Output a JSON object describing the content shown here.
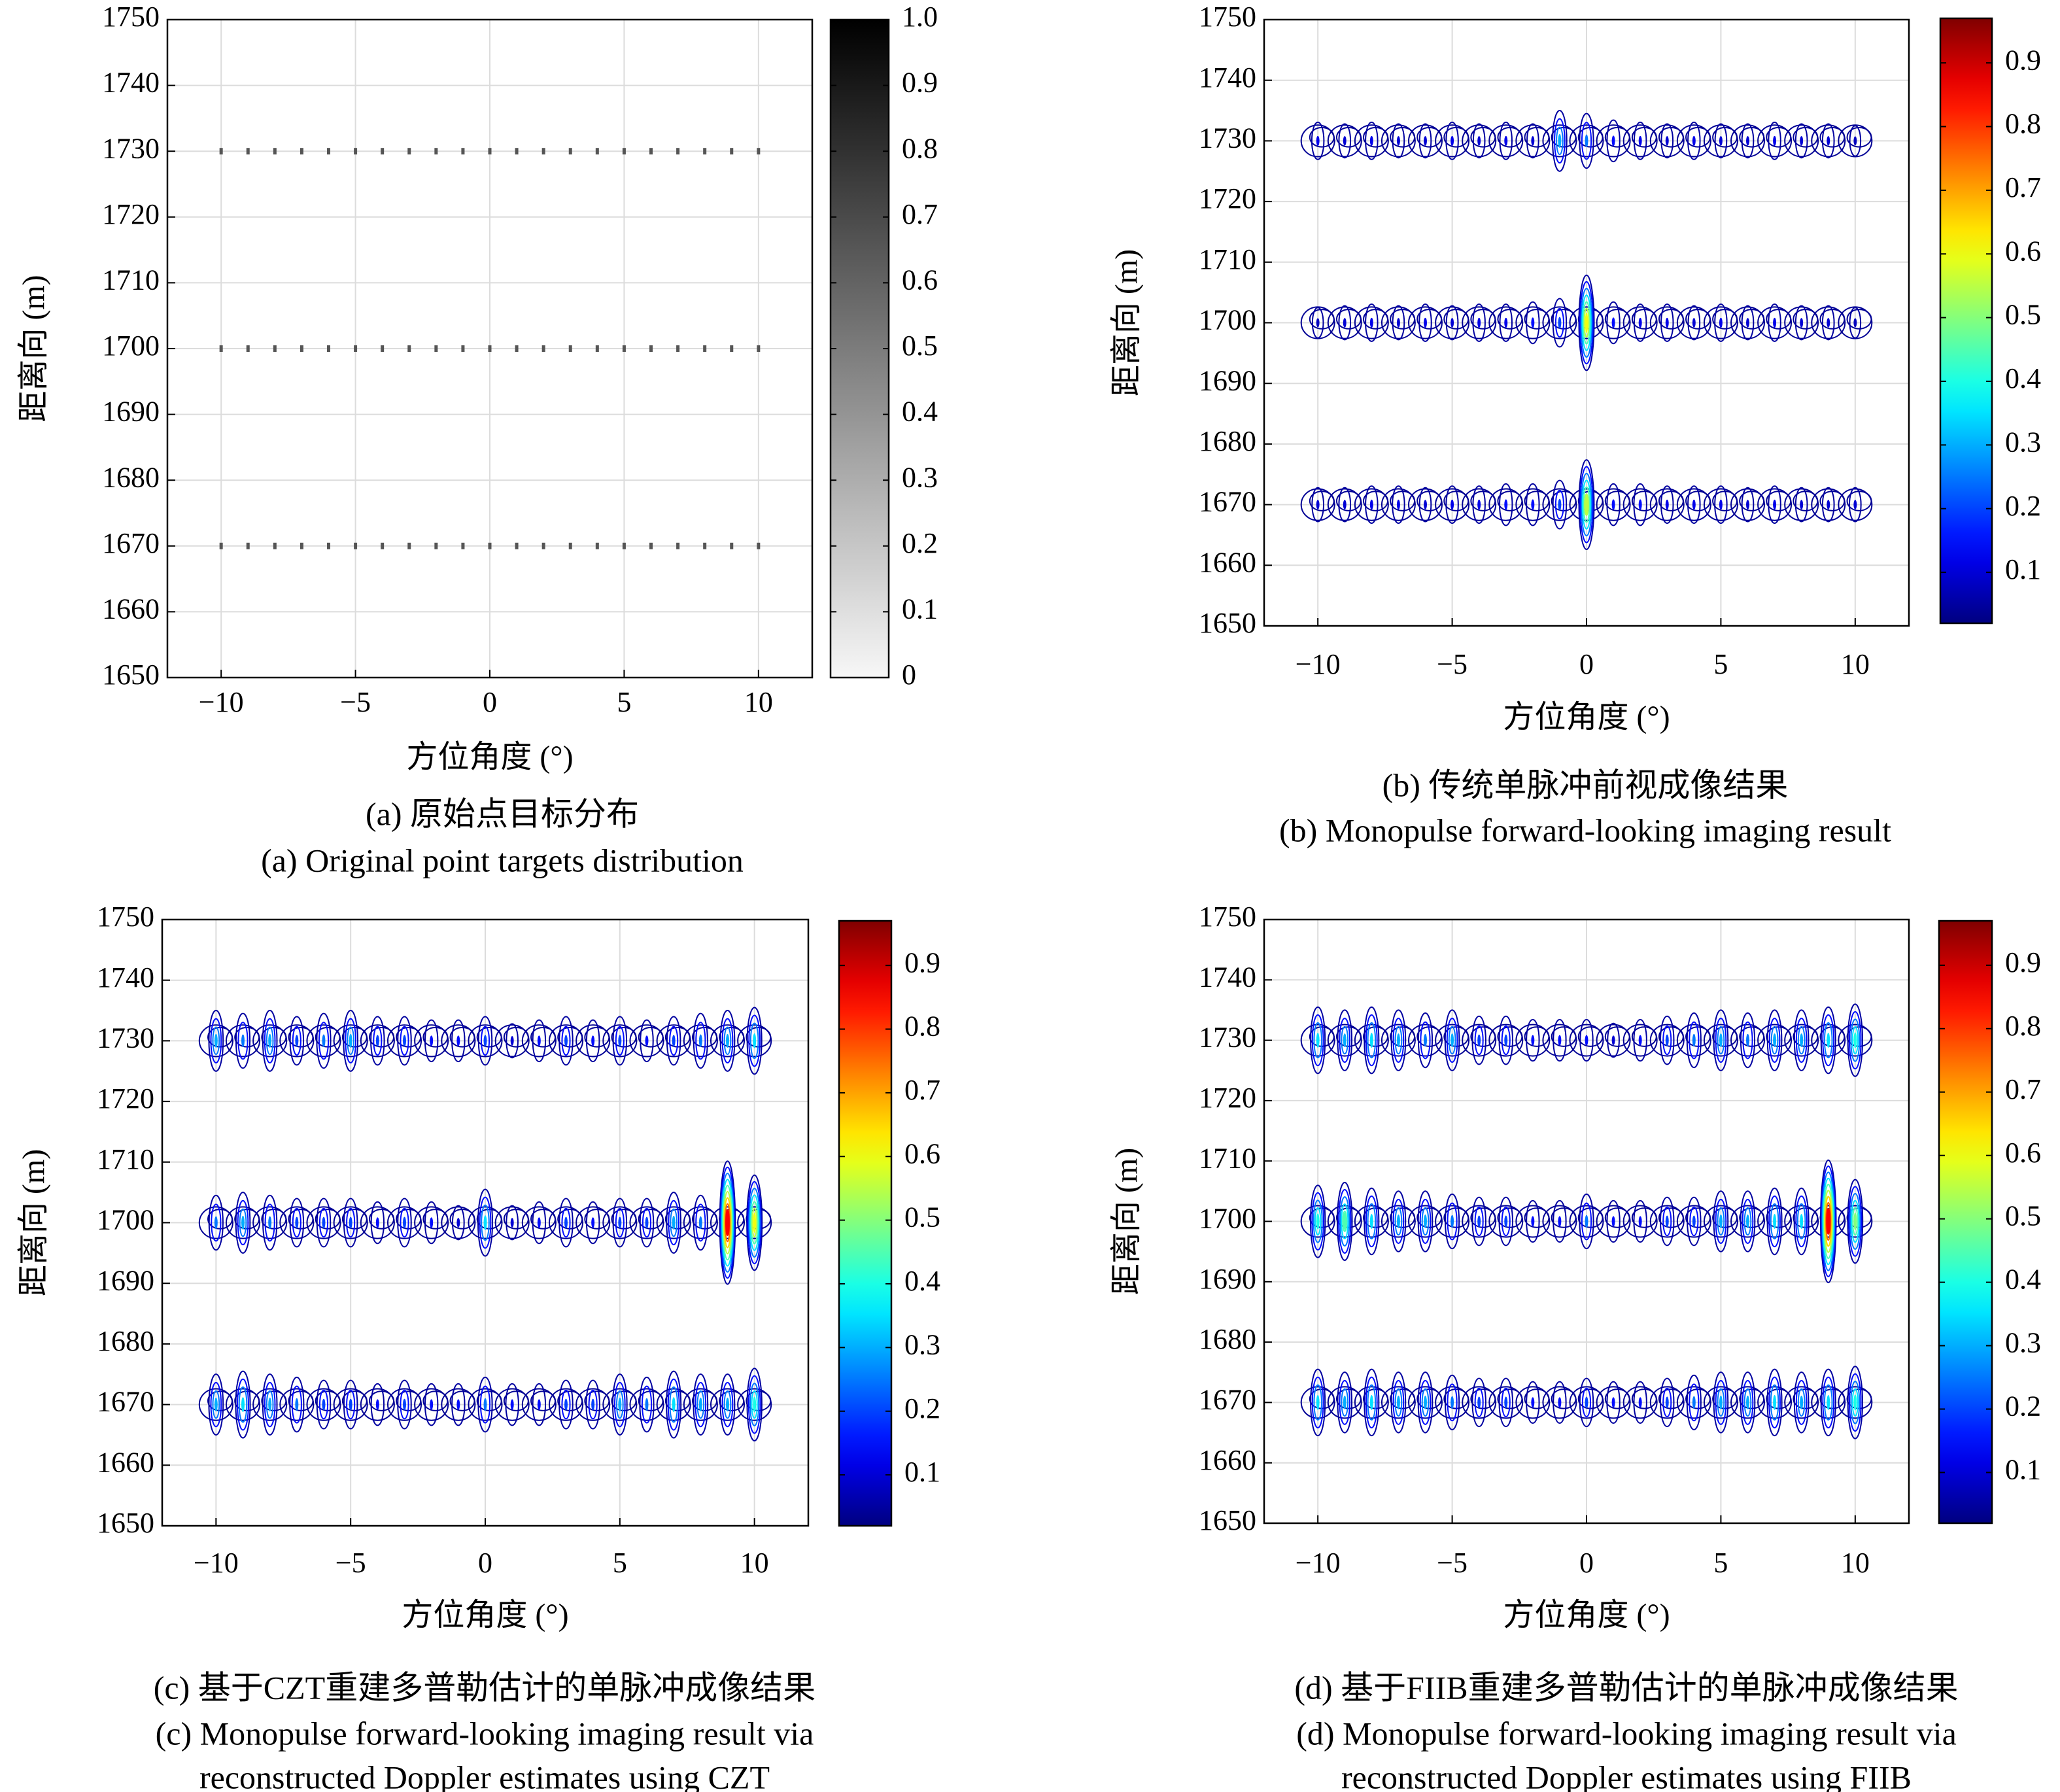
{
  "chart_data": [
    {
      "type": "scatter",
      "xlabel": "方位角度 (°)",
      "ylabel": "距离向 (m)",
      "caption": [
        "(a) 原始点目标分布",
        "(a) Original point targets distribution"
      ],
      "xlim": [
        -12,
        12
      ],
      "ylim": [
        1650,
        1750
      ],
      "xticks": [
        {
          "value": -10,
          "label": "−10"
        },
        {
          "value": -5,
          "label": "−5"
        },
        0,
        5,
        10
      ],
      "yticks": [
        1650,
        1660,
        1670,
        1680,
        1690,
        1700,
        1710,
        1720,
        1730,
        1740,
        1750
      ],
      "grid": true,
      "color": "#555555",
      "x": [
        -10,
        -9,
        -8,
        -7,
        -6,
        -5,
        -4,
        -3,
        -2,
        -1,
        0,
        1,
        2,
        3,
        4,
        5,
        6,
        7,
        8,
        9,
        10
      ],
      "series": [
        {
          "values": [
            1730,
            1730,
            1730,
            1730,
            1730,
            1730,
            1730,
            1730,
            1730,
            1730,
            1730,
            1730,
            1730,
            1730,
            1730,
            1730,
            1730,
            1730,
            1730,
            1730,
            1730
          ]
        },
        {
          "values": [
            1700,
            1700,
            1700,
            1700,
            1700,
            1700,
            1700,
            1700,
            1700,
            1700,
            1700,
            1700,
            1700,
            1700,
            1700,
            1700,
            1700,
            1700,
            1700,
            1700,
            1700
          ]
        },
        {
          "values": [
            1670,
            1670,
            1670,
            1670,
            1670,
            1670,
            1670,
            1670,
            1670,
            1670,
            1670,
            1670,
            1670,
            1670,
            1670,
            1670,
            1670,
            1670,
            1670,
            1670,
            1670
          ]
        }
      ],
      "colorbar": {
        "colormap": "gray",
        "lim": [
          0,
          1
        ],
        "ticks": [
          0,
          0.1,
          0.2,
          0.3,
          0.4,
          0.5,
          0.6,
          0.7,
          0.8,
          0.9,
          {
            "value": 1,
            "label": "1.0"
          }
        ]
      }
    },
    {
      "type": "contour",
      "xlabel": "方位角度 (°)",
      "ylabel": "距离向 (m)",
      "caption": [
        "(b) 传统单脉冲前视成像结果",
        "(b) Monopulse forward-looking imaging result"
      ],
      "xlim": [
        -12,
        12
      ],
      "ylim": [
        1650,
        1750
      ],
      "xticks": [
        {
          "value": -10,
          "label": "−10"
        },
        {
          "value": -5,
          "label": "−5"
        },
        0,
        5,
        10
      ],
      "yticks": [
        1650,
        1660,
        1670,
        1680,
        1690,
        1700,
        1710,
        1720,
        1730,
        1740,
        1750
      ],
      "grid": true,
      "x": [
        -10,
        -9,
        -8,
        -7,
        -6,
        -5,
        -4,
        -3,
        -2,
        -1,
        0,
        1,
        2,
        3,
        4,
        5,
        6,
        7,
        8,
        9,
        10
      ],
      "series": [
        {
          "y": 1730,
          "values": [
            0.12,
            0.1,
            0.12,
            0.1,
            0.1,
            0.12,
            0.1,
            0.12,
            0.1,
            0.3,
            0.25,
            0.15,
            0.12,
            0.1,
            0.12,
            0.1,
            0.1,
            0.12,
            0.1,
            0.1,
            0.08
          ]
        },
        {
          "y": 1700,
          "values": [
            0.08,
            0.1,
            0.12,
            0.1,
            0.12,
            0.1,
            0.12,
            0.12,
            0.15,
            0.2,
            0.6,
            0.15,
            0.12,
            0.12,
            0.1,
            0.12,
            0.1,
            0.12,
            0.1,
            0.1,
            0.08
          ]
        },
        {
          "y": 1670,
          "values": [
            0.1,
            0.1,
            0.12,
            0.12,
            0.1,
            0.12,
            0.12,
            0.15,
            0.15,
            0.2,
            0.55,
            0.15,
            0.15,
            0.12,
            0.12,
            0.12,
            0.1,
            0.12,
            0.1,
            0.1,
            0.1
          ]
        }
      ],
      "colorbar": {
        "colormap": "jet",
        "lim": [
          0.02,
          0.97
        ],
        "ticks": [
          0.1,
          0.2,
          0.3,
          0.4,
          0.5,
          0.6,
          0.7,
          0.8,
          0.9
        ]
      }
    },
    {
      "type": "contour",
      "xlabel": "方位角度 (°)",
      "ylabel": "距离向 (m)",
      "caption": [
        "(c) 基于CZT重建多普勒估计的单脉冲成像结果",
        "(c) Monopulse forward-looking imaging result via",
        "reconstructed Doppler estimates using CZT"
      ],
      "xlim": [
        -12,
        12
      ],
      "ylim": [
        1650,
        1750
      ],
      "xticks": [
        {
          "value": -10,
          "label": "−10"
        },
        {
          "value": -5,
          "label": "−5"
        },
        0,
        5,
        10
      ],
      "yticks": [
        1650,
        1660,
        1670,
        1680,
        1690,
        1700,
        1710,
        1720,
        1730,
        1740,
        1750
      ],
      "grid": true,
      "x": [
        -10,
        -9,
        -8,
        -7,
        -6,
        -5,
        -4,
        -3,
        -2,
        -1,
        0,
        1,
        2,
        3,
        4,
        5,
        6,
        7,
        8,
        9,
        10
      ],
      "series": [
        {
          "y": 1730,
          "values": [
            0.3,
            0.25,
            0.3,
            0.2,
            0.25,
            0.3,
            0.2,
            0.2,
            0.15,
            0.15,
            0.2,
            0.1,
            0.15,
            0.2,
            0.15,
            0.2,
            0.15,
            0.2,
            0.25,
            0.3,
            0.35
          ]
        },
        {
          "y": 1700,
          "values": [
            0.25,
            0.3,
            0.25,
            0.2,
            0.2,
            0.2,
            0.15,
            0.2,
            0.15,
            0.1,
            0.35,
            0.1,
            0.15,
            0.2,
            0.15,
            0.2,
            0.2,
            0.3,
            0.25,
            0.85,
            0.6
          ]
        },
        {
          "y": 1670,
          "values": [
            0.3,
            0.35,
            0.3,
            0.25,
            0.2,
            0.2,
            0.15,
            0.2,
            0.15,
            0.15,
            0.25,
            0.15,
            0.15,
            0.2,
            0.2,
            0.3,
            0.25,
            0.35,
            0.3,
            0.3,
            0.4
          ]
        }
      ],
      "colorbar": {
        "colormap": "jet",
        "lim": [
          0.02,
          0.97
        ],
        "ticks": [
          0.1,
          0.2,
          0.3,
          0.4,
          0.5,
          0.6,
          0.7,
          0.8,
          0.9
        ]
      }
    },
    {
      "type": "contour",
      "xlabel": "方位角度 (°)",
      "ylabel": "距离向 (m)",
      "caption": [
        "(d) 基于FIIB重建多普勒估计的单脉冲成像结果",
        "(d) Monopulse forward-looking imaging result via",
        "reconstructed Doppler estimates using FIIB"
      ],
      "xlim": [
        -12,
        12
      ],
      "ylim": [
        1650,
        1750
      ],
      "xticks": [
        {
          "value": -10,
          "label": "−10"
        },
        {
          "value": -5,
          "label": "−5"
        },
        0,
        5,
        10
      ],
      "yticks": [
        1650,
        1660,
        1670,
        1680,
        1690,
        1700,
        1710,
        1720,
        1730,
        1740,
        1750
      ],
      "grid": true,
      "x": [
        -10,
        -9,
        -8,
        -7,
        -6,
        -5,
        -4,
        -3,
        -2,
        -1,
        0,
        1,
        2,
        3,
        4,
        5,
        6,
        7,
        8,
        9,
        10
      ],
      "series": [
        {
          "y": 1730,
          "values": [
            0.35,
            0.3,
            0.35,
            0.3,
            0.25,
            0.3,
            0.2,
            0.2,
            0.15,
            0.15,
            0.15,
            0.1,
            0.15,
            0.2,
            0.25,
            0.3,
            0.25,
            0.3,
            0.3,
            0.35,
            0.4
          ]
        },
        {
          "y": 1700,
          "values": [
            0.4,
            0.45,
            0.35,
            0.3,
            0.3,
            0.25,
            0.2,
            0.2,
            0.15,
            0.15,
            0.25,
            0.15,
            0.15,
            0.2,
            0.2,
            0.3,
            0.3,
            0.35,
            0.35,
            0.85,
            0.5
          ]
        },
        {
          "y": 1670,
          "values": [
            0.35,
            0.3,
            0.35,
            0.3,
            0.3,
            0.25,
            0.2,
            0.2,
            0.15,
            0.15,
            0.2,
            0.15,
            0.15,
            0.2,
            0.25,
            0.3,
            0.3,
            0.35,
            0.3,
            0.35,
            0.4
          ]
        }
      ],
      "colorbar": {
        "colormap": "jet",
        "lim": [
          0.02,
          0.97
        ],
        "ticks": [
          0.1,
          0.2,
          0.3,
          0.4,
          0.5,
          0.6,
          0.7,
          0.8,
          0.9
        ]
      }
    }
  ]
}
